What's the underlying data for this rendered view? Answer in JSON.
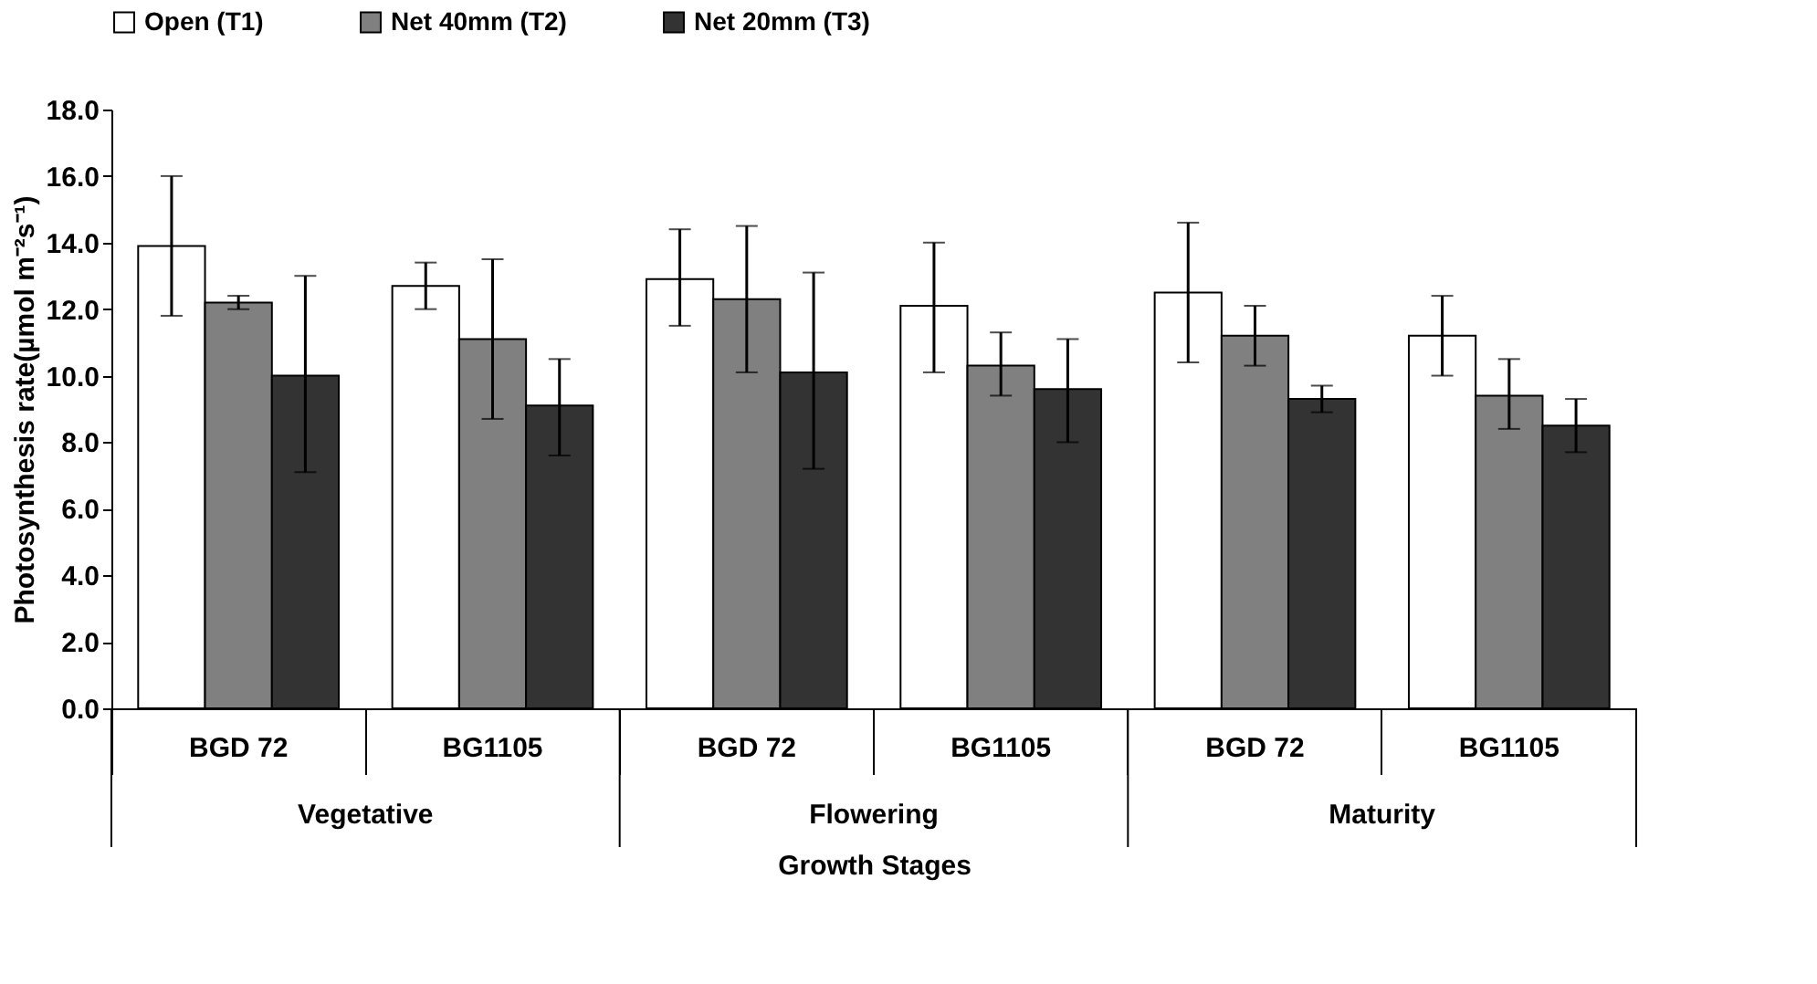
{
  "chart_data": {
    "type": "bar",
    "categories": [
      "BGD 72",
      "BG1105",
      "BGD 72",
      "BG1105",
      "BGD 72",
      "BG1105"
    ],
    "series": [
      {
        "name": "Open (T1)",
        "color": "#ffffff",
        "values": [
          13.9,
          12.7,
          12.9,
          12.1,
          12.5,
          11.2
        ],
        "errors": [
          [
            11.8,
            16.0
          ],
          [
            12.0,
            13.4
          ],
          [
            11.5,
            14.4
          ],
          [
            10.1,
            14.0
          ],
          [
            10.4,
            14.6
          ],
          [
            10.0,
            12.4
          ]
        ]
      },
      {
        "name": "Net 40mm (T2)",
        "color": "#808080",
        "values": [
          12.2,
          11.1,
          12.3,
          10.3,
          11.2,
          9.4
        ],
        "errors": [
          [
            12.0,
            12.4
          ],
          [
            8.7,
            13.5
          ],
          [
            10.1,
            14.5
          ],
          [
            9.4,
            11.3
          ],
          [
            10.3,
            12.1
          ],
          [
            8.4,
            10.5
          ]
        ]
      },
      {
        "name": "Net 20mm (T3)",
        "color": "#333333",
        "values": [
          10.0,
          9.1,
          10.1,
          9.6,
          9.3,
          8.5
        ],
        "errors": [
          [
            7.1,
            13.0
          ],
          [
            7.6,
            10.5
          ],
          [
            7.2,
            13.1
          ],
          [
            8.0,
            11.1
          ],
          [
            8.9,
            9.7
          ],
          [
            7.7,
            9.3
          ]
        ]
      }
    ],
    "ylabel": "Photosynthesis  rate(µmol m⁻²s⁻¹)",
    "xlabel": "Growth Stages",
    "annotations": [
      "Vegetative",
      "Flowering",
      "Maturity"
    ],
    "ylim": [
      0,
      18
    ],
    "yticks": [
      {
        "value": 0,
        "label": "0.0"
      },
      {
        "value": 2,
        "label": "2.0"
      },
      {
        "value": 4,
        "label": "4.0"
      },
      {
        "value": 6,
        "label": "6.0"
      },
      {
        "value": 8,
        "label": "8.0"
      },
      {
        "value": 10,
        "label": "10.0"
      },
      {
        "value": 12,
        "label": "12.0"
      },
      {
        "value": 14,
        "label": "14.0"
      },
      {
        "value": 16,
        "label": "16.0"
      },
      {
        "value": 18,
        "label": "18.0"
      }
    ],
    "legend": "top",
    "grid": false
  }
}
